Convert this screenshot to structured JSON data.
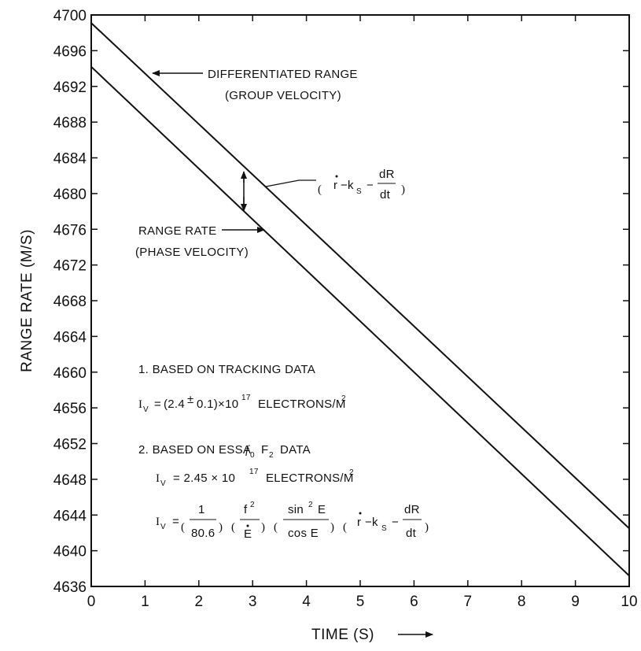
{
  "chart_data": {
    "type": "line",
    "xlabel": "TIME (S)",
    "ylabel": "RANGE RATE (M/S)",
    "xlim": [
      0,
      10
    ],
    "ylim": [
      4636,
      4700
    ],
    "x_ticks": [
      0,
      1,
      2,
      3,
      4,
      5,
      6,
      7,
      8,
      9,
      10
    ],
    "y_ticks": [
      4636,
      4640,
      4644,
      4648,
      4652,
      4656,
      4660,
      4664,
      4668,
      4672,
      4676,
      4680,
      4684,
      4688,
      4692,
      4696,
      4700
    ],
    "grid": false,
    "series": [
      {
        "name": "DIFFERENTIATED RANGE (GROUP VELOCITY)",
        "x": [
          0,
          10
        ],
        "y": [
          4699.1,
          4642.5
        ]
      },
      {
        "name": "RANGE RATE (PHASE VELOCITY)",
        "x": [
          0,
          10
        ],
        "y": [
          4694.2,
          4637.2
        ]
      }
    ],
    "annotations": {
      "group_label_1": "DIFFERENTIATED RANGE",
      "group_label_2": "(GROUP VELOCITY)",
      "phase_label_1": "RANGE RATE",
      "phase_label_2": "(PHASE VELOCITY)",
      "diff_expr": {
        "open": "(",
        "r": "r",
        "minus_k": "−k",
        "sub_s": "S",
        "minus": "−",
        "num": "dR",
        "den": "dt",
        "close": ")"
      },
      "note1": "1. BASED ON TRACKING DATA",
      "note1_formula": {
        "lhs": "I",
        "sub_v": "V",
        "eq": "=",
        "value": "(2.4",
        "pm": "±",
        "value2": "0.1)×10",
        "exp": "17",
        "unit": "ELECTRONS/M",
        "unit_exp": "2"
      },
      "note2": "2. BASED ON ESSA",
      "note2_f": "f",
      "note2_sub0": "0",
      "note2_F": "F",
      "note2_sub2": "2",
      "note2_data": "DATA",
      "note2_formula": {
        "lhs": "I",
        "sub_v": "V",
        "eq": "= 2.45 × 10",
        "exp": "17",
        "unit": "ELECTRONS/M",
        "unit_exp": "2"
      },
      "formula3": {
        "lhs": "I",
        "sub_v": "V",
        "eq": "=",
        "f1_num": "1",
        "f1_den": "80.6",
        "f2_num": "f",
        "f2_num_exp": "2",
        "f2_den": "E",
        "f3_num": "sin",
        "f3_num_exp": "2",
        "f3_num_var": "E",
        "f3_den": "cos E",
        "f4_r": "r",
        "f4_k": "−k",
        "f4_sub": "S",
        "f4_minus": "−",
        "f4_num": "dR",
        "f4_den": "dt"
      },
      "time_arrow": "→"
    }
  }
}
